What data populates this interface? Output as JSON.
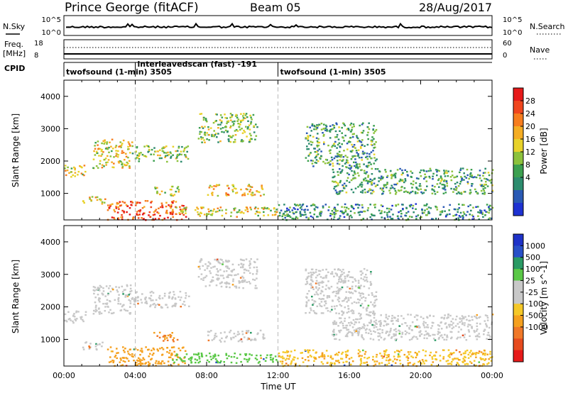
{
  "header": {
    "station": "Prince George (fitACF)",
    "beam": "Beam 05",
    "date": "28/Aug/2017"
  },
  "strip": {
    "nsky_label": "N.Sky",
    "nsky_ticks": [
      "10^5",
      "10^0"
    ],
    "nsearch_label": "N.Search",
    "nsearch_ticks": [
      "10^5",
      "10^0"
    ],
    "freq_label": "Freq.",
    "freq_unit": "[MHz]",
    "freq_ticks": [
      "18",
      "8"
    ],
    "nave_label": "Nave",
    "nave_ticks": [
      "60",
      "0"
    ],
    "cpid_label": "CPID",
    "cpid_segments": [
      {
        "label": "twofsound (1-min) 3505",
        "start_hour": 0,
        "end_hour": 4
      },
      {
        "label": "interleavedscan (fast) -191",
        "start_hour": 4,
        "end_hour": 12
      },
      {
        "label": "twofsound (1-min) 3505",
        "start_hour": 12,
        "end_hour": 24
      }
    ]
  },
  "axes": {
    "ylabel": "Slant Range [km]",
    "xlabel": "Time UT",
    "y_ticks": [
      "1000",
      "2000",
      "3000",
      "4000"
    ],
    "x_ticks": [
      "00:00",
      "04:00",
      "08:00",
      "12:00",
      "16:00",
      "20:00",
      "00:00"
    ]
  },
  "colorbars": {
    "power_label": "Power [dB]",
    "power_ticks": [
      "28",
      "24",
      "20",
      "16",
      "12",
      "8",
      "4"
    ],
    "power_colors": [
      "#e61a1a",
      "#f0461e",
      "#f77d1e",
      "#f5ad23",
      "#e8d22a",
      "#8cc23c",
      "#3ca050",
      "#2d8c6e",
      "#2a5ab4",
      "#1e32d2"
    ],
    "velocity_label": "Velocity [m s^-1]",
    "velocity_ticks": [
      "1000",
      "500",
      "100",
      "25",
      "-25",
      "-100",
      "-500",
      "-1000"
    ],
    "velocity_colors": [
      "#1e32c8",
      "#2850c8",
      "#2a9a64",
      "#5ac846",
      "#c8c8c8",
      "#c8c8c8",
      "#f5c828",
      "#f5a01e",
      "#f07828",
      "#e64b1e",
      "#e61a1a"
    ]
  },
  "chart_data": [
    {
      "type": "heatmap",
      "title": "Power [dB]",
      "xlabel": "Time UT",
      "ylabel": "Slant Range [km]",
      "xlim_hours": [
        0,
        24
      ],
      "ylim_km": [
        180,
        4500
      ],
      "colorbar_range": [
        0,
        32
      ],
      "echo_regions": [
        {
          "t_start": 0.0,
          "t_end": 1.2,
          "r_start": 1500,
          "r_end": 1900,
          "value": 18
        },
        {
          "t_start": 1.0,
          "t_end": 2.3,
          "r_start": 700,
          "r_end": 950,
          "value": 20
        },
        {
          "t_start": 1.6,
          "t_end": 3.8,
          "r_start": 1800,
          "r_end": 2700,
          "value": 18
        },
        {
          "t_start": 3.8,
          "t_end": 7.0,
          "r_start": 2000,
          "r_end": 2500,
          "value": 14
        },
        {
          "t_start": 2.4,
          "t_end": 6.8,
          "r_start": 200,
          "r_end": 800,
          "value": 28
        },
        {
          "t_start": 5.0,
          "t_end": 6.4,
          "r_start": 950,
          "r_end": 1250,
          "value": 16
        },
        {
          "t_start": 7.5,
          "t_end": 10.8,
          "r_start": 2600,
          "r_end": 3500,
          "value": 14
        },
        {
          "t_start": 8.0,
          "t_end": 11.2,
          "r_start": 950,
          "r_end": 1300,
          "value": 20
        },
        {
          "t_start": 6.0,
          "t_end": 12.0,
          "r_start": 300,
          "r_end": 600,
          "value": 18
        },
        {
          "t_start": 13.5,
          "t_end": 17.5,
          "r_start": 1800,
          "r_end": 3200,
          "value": 10
        },
        {
          "t_start": 15.0,
          "t_end": 24.0,
          "r_start": 1000,
          "r_end": 1800,
          "value": 10
        },
        {
          "t_start": 12.0,
          "t_end": 24.0,
          "r_start": 200,
          "r_end": 700,
          "value": 8
        }
      ]
    },
    {
      "type": "heatmap",
      "title": "Velocity [m s^-1]",
      "xlabel": "Time UT",
      "ylabel": "Slant Range [km]",
      "xlim_hours": [
        0,
        24
      ],
      "ylim_km": [
        180,
        4500
      ],
      "colorbar_range": [
        -1000,
        1000
      ],
      "echo_regions": [
        {
          "t_start": 0.0,
          "t_end": 1.2,
          "r_start": 1500,
          "r_end": 1900,
          "value": 0
        },
        {
          "t_start": 1.0,
          "t_end": 2.3,
          "r_start": 700,
          "r_end": 950,
          "value": 0
        },
        {
          "t_start": 1.6,
          "t_end": 3.8,
          "r_start": 1800,
          "r_end": 2700,
          "value": 0
        },
        {
          "t_start": 3.8,
          "t_end": 7.0,
          "r_start": 2000,
          "r_end": 2500,
          "value": 0
        },
        {
          "t_start": 2.4,
          "t_end": 6.8,
          "r_start": 200,
          "r_end": 800,
          "value": -150
        },
        {
          "t_start": 5.0,
          "t_end": 6.4,
          "r_start": 950,
          "r_end": 1250,
          "value": -300
        },
        {
          "t_start": 7.5,
          "t_end": 10.8,
          "r_start": 2600,
          "r_end": 3500,
          "value": 0
        },
        {
          "t_start": 8.0,
          "t_end": 11.2,
          "r_start": 950,
          "r_end": 1300,
          "value": 0
        },
        {
          "t_start": 6.0,
          "t_end": 12.0,
          "r_start": 300,
          "r_end": 600,
          "value": 150
        },
        {
          "t_start": 13.5,
          "t_end": 17.5,
          "r_start": 1800,
          "r_end": 3200,
          "value": 0
        },
        {
          "t_start": 15.0,
          "t_end": 24.0,
          "r_start": 1000,
          "r_end": 1800,
          "value": 0
        },
        {
          "t_start": 12.0,
          "t_end": 24.0,
          "r_start": 200,
          "r_end": 700,
          "value": -50
        }
      ]
    }
  ]
}
